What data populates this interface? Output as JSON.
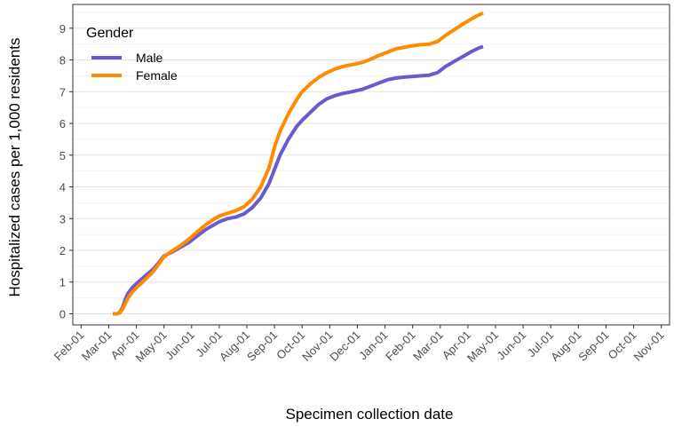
{
  "chart_data": {
    "type": "line",
    "xlabel": "Specimen collection date",
    "ylabel": "Hospitalized cases per 1,000 residents",
    "x_axis": {
      "ticks": [
        "Feb-01",
        "Mar-01",
        "Apr-01",
        "May-01",
        "Jun-01",
        "Jul-01",
        "Aug-01",
        "Sep-01",
        "Oct-01",
        "Nov-01",
        "Dec-01",
        "Jan-01",
        "Feb-01",
        "Mar-01",
        "Apr-01",
        "May-01",
        "Jun-01",
        "Jul-01",
        "Aug-01",
        "Sep-01",
        "Oct-01",
        "Nov-01"
      ]
    },
    "y_axis": {
      "ylim": [
        -0.35,
        9.75
      ],
      "ticks": [
        0,
        1,
        2,
        3,
        4,
        5,
        6,
        7,
        8,
        9
      ]
    },
    "grid": true,
    "legend": {
      "title": "Gender",
      "placement": "top-left inside"
    },
    "series": [
      {
        "name": "Male",
        "color": "#6a5acd",
        "points": [
          [
            1.15,
            0.0
          ],
          [
            1.3,
            0.0
          ],
          [
            1.4,
            0.05
          ],
          [
            1.5,
            0.2
          ],
          [
            1.6,
            0.45
          ],
          [
            1.7,
            0.65
          ],
          [
            1.85,
            0.82
          ],
          [
            2.0,
            0.95
          ],
          [
            2.2,
            1.1
          ],
          [
            2.4,
            1.25
          ],
          [
            2.6,
            1.4
          ],
          [
            2.8,
            1.6
          ],
          [
            3.0,
            1.82
          ],
          [
            3.3,
            1.95
          ],
          [
            3.6,
            2.1
          ],
          [
            3.9,
            2.25
          ],
          [
            4.2,
            2.45
          ],
          [
            4.5,
            2.65
          ],
          [
            4.8,
            2.8
          ],
          [
            5.0,
            2.9
          ],
          [
            5.3,
            3.0
          ],
          [
            5.6,
            3.05
          ],
          [
            5.9,
            3.15
          ],
          [
            6.2,
            3.35
          ],
          [
            6.5,
            3.65
          ],
          [
            6.8,
            4.1
          ],
          [
            7.0,
            4.55
          ],
          [
            7.2,
            5.0
          ],
          [
            7.5,
            5.5
          ],
          [
            7.8,
            5.9
          ],
          [
            8.0,
            6.1
          ],
          [
            8.3,
            6.35
          ],
          [
            8.6,
            6.6
          ],
          [
            8.9,
            6.78
          ],
          [
            9.2,
            6.88
          ],
          [
            9.5,
            6.95
          ],
          [
            9.8,
            7.0
          ],
          [
            10.2,
            7.08
          ],
          [
            10.5,
            7.18
          ],
          [
            10.8,
            7.28
          ],
          [
            11.1,
            7.38
          ],
          [
            11.4,
            7.43
          ],
          [
            11.7,
            7.46
          ],
          [
            12.0,
            7.48
          ],
          [
            12.3,
            7.5
          ],
          [
            12.6,
            7.52
          ],
          [
            12.9,
            7.6
          ],
          [
            13.2,
            7.8
          ],
          [
            13.5,
            7.95
          ],
          [
            13.8,
            8.1
          ],
          [
            14.1,
            8.25
          ],
          [
            14.4,
            8.38
          ],
          [
            14.55,
            8.42
          ]
        ]
      },
      {
        "name": "Female",
        "color": "#ff8c00",
        "points": [
          [
            1.15,
            0.0
          ],
          [
            1.3,
            0.0
          ],
          [
            1.4,
            0.03
          ],
          [
            1.5,
            0.15
          ],
          [
            1.6,
            0.32
          ],
          [
            1.7,
            0.5
          ],
          [
            1.85,
            0.68
          ],
          [
            2.0,
            0.82
          ],
          [
            2.2,
            0.98
          ],
          [
            2.4,
            1.15
          ],
          [
            2.6,
            1.32
          ],
          [
            2.8,
            1.55
          ],
          [
            3.0,
            1.8
          ],
          [
            3.3,
            1.98
          ],
          [
            3.6,
            2.15
          ],
          [
            3.9,
            2.35
          ],
          [
            4.2,
            2.58
          ],
          [
            4.5,
            2.8
          ],
          [
            4.8,
            2.98
          ],
          [
            5.0,
            3.08
          ],
          [
            5.3,
            3.17
          ],
          [
            5.6,
            3.25
          ],
          [
            5.9,
            3.38
          ],
          [
            6.2,
            3.62
          ],
          [
            6.5,
            4.0
          ],
          [
            6.8,
            4.6
          ],
          [
            7.0,
            5.25
          ],
          [
            7.2,
            5.75
          ],
          [
            7.5,
            6.3
          ],
          [
            7.8,
            6.75
          ],
          [
            8.0,
            7.0
          ],
          [
            8.3,
            7.25
          ],
          [
            8.6,
            7.45
          ],
          [
            8.9,
            7.6
          ],
          [
            9.2,
            7.72
          ],
          [
            9.5,
            7.8
          ],
          [
            9.8,
            7.85
          ],
          [
            10.2,
            7.93
          ],
          [
            10.5,
            8.03
          ],
          [
            10.8,
            8.15
          ],
          [
            11.1,
            8.25
          ],
          [
            11.4,
            8.35
          ],
          [
            11.7,
            8.4
          ],
          [
            12.0,
            8.45
          ],
          [
            12.3,
            8.48
          ],
          [
            12.6,
            8.5
          ],
          [
            12.9,
            8.58
          ],
          [
            13.2,
            8.78
          ],
          [
            13.5,
            8.95
          ],
          [
            13.8,
            9.12
          ],
          [
            14.1,
            9.28
          ],
          [
            14.4,
            9.42
          ],
          [
            14.55,
            9.48
          ]
        ]
      }
    ]
  }
}
